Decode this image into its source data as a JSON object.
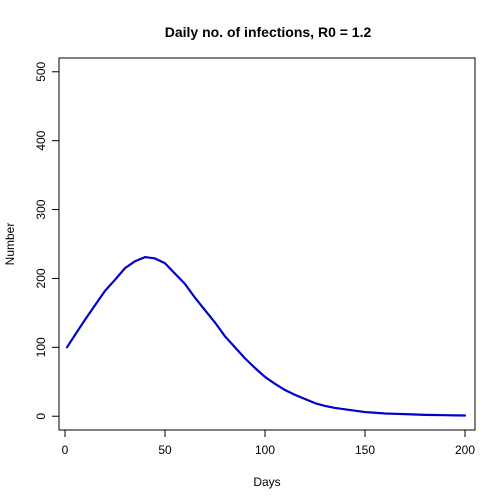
{
  "chart_data": {
    "type": "line",
    "title": "Daily no. of infections, R0 = 1.2",
    "xlabel": "Days",
    "ylabel": "Number",
    "xlim": [
      -3,
      205
    ],
    "ylim": [
      -20,
      520
    ],
    "xticks": [
      0,
      50,
      100,
      150,
      200
    ],
    "yticks": [
      0,
      100,
      200,
      300,
      400,
      500
    ],
    "grid": false,
    "series": [
      {
        "color": "#0000cc",
        "x": [
          1,
          5,
          10,
          15,
          20,
          25,
          30,
          35,
          40,
          45,
          50,
          55,
          60,
          65,
          70,
          75,
          80,
          85,
          90,
          95,
          100,
          105,
          110,
          115,
          120,
          125,
          130,
          135,
          140,
          145,
          150,
          155,
          160,
          165,
          170,
          175,
          180,
          185,
          190,
          195,
          200
        ],
        "y": [
          100,
          118,
          140,
          161,
          182,
          198,
          215,
          225,
          231,
          229,
          222,
          207,
          192,
          172,
          154,
          136,
          116,
          100,
          84,
          70,
          57,
          47,
          38,
          31,
          25,
          19,
          15,
          12,
          10,
          8,
          6,
          5,
          4,
          3.5,
          3,
          2.5,
          2,
          1.8,
          1.5,
          1.2,
          1
        ]
      }
    ]
  }
}
